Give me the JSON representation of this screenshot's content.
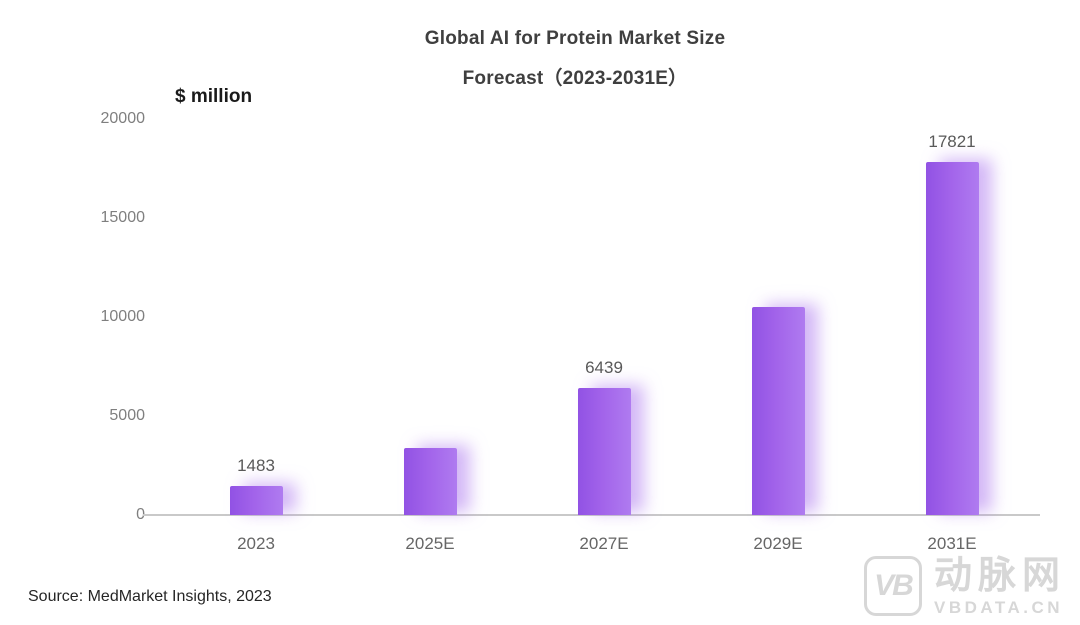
{
  "header": {
    "title_line1": "Global AI for Protein Market Size",
    "title_line2": "Forecast（2023-2031E）",
    "unit_label": "$ million"
  },
  "chart_data": {
    "type": "bar",
    "categories": [
      "2023",
      "2025E",
      "2027E",
      "2029E",
      "2031E"
    ],
    "values": [
      1483,
      3400,
      6439,
      10500,
      17821
    ],
    "data_labels": [
      "1483",
      null,
      "6439",
      null,
      "17821"
    ],
    "title": "Global AI for Protein Market Size Forecast（2023-2031E）",
    "xlabel": "",
    "ylabel": "$ million",
    "yticks": [
      0,
      5000,
      10000,
      15000,
      20000
    ],
    "ylim": [
      0,
      20000
    ],
    "grid": false,
    "legend": "none",
    "bar_color": "#a263ea"
  },
  "footer": {
    "source": "Source: MedMarket Insights, 2023"
  },
  "watermark": {
    "monogram": "VB",
    "brand_name_cn": "动脉网",
    "brand_domain": "VBDATA.CN"
  },
  "colors": {
    "bar_gradient_start": "#9152e4",
    "bar_gradient_end": "#af7bf0",
    "bar_shadow": "rgba(174,124,238,0.55)",
    "axis_line": "#c9c9c9",
    "y_tick_text": "#7f7f7f",
    "x_tick_text": "#666666",
    "data_label_text": "#595959",
    "title_text": "#3f3f3f",
    "source_text": "#262626",
    "watermark_gray": "#d7d7d7",
    "background": "#ffffff"
  }
}
